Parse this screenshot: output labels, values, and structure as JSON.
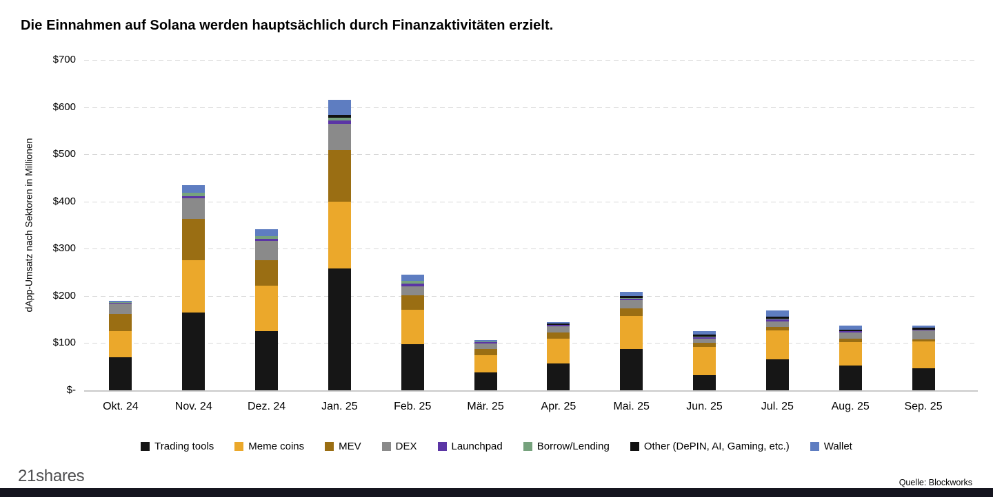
{
  "title": "Die Einnahmen auf Solana werden hauptsächlich durch Finanzaktivitäten erzielt.",
  "footer": {
    "logo": "21shares",
    "source": "Quelle: Blockworks"
  },
  "chart_data": {
    "type": "bar",
    "stacked": true,
    "title": "Die Einnahmen auf Solana werden hauptsächlich durch Finanzaktivitäten erzielt.",
    "ylabel": "dApp-Umsatz nach Sektoren in Millionen",
    "xlabel": "",
    "ylim": [
      0,
      700
    ],
    "grid": "dashed-horizontal",
    "legend_position": "bottom",
    "yticks": [
      {
        "label": "$700",
        "value": 700
      },
      {
        "label": "$600",
        "value": 600
      },
      {
        "label": "$500",
        "value": 500
      },
      {
        "label": "$400",
        "value": 400
      },
      {
        "label": "$300",
        "value": 300
      },
      {
        "label": "$200",
        "value": 200
      },
      {
        "label": "$100",
        "value": 100
      },
      {
        "label": "$-",
        "value": 0
      }
    ],
    "categories": [
      "Okt. 24",
      "Nov. 24",
      "Dez. 24",
      "Jan. 25",
      "Feb. 25",
      "Mär. 25",
      "Apr. 25",
      "Mai. 25",
      "Jun. 25",
      "Jul. 25",
      "Aug. 25",
      "Sep. 25"
    ],
    "series": [
      {
        "name": "Trading tools",
        "color": "#161616",
        "values": [
          70,
          165,
          126,
          258,
          98,
          38,
          57,
          87,
          32,
          65,
          52,
          47
        ]
      },
      {
        "name": "Meme coins",
        "color": "#EBA82B",
        "values": [
          55,
          110,
          96,
          142,
          72,
          37,
          53,
          71,
          60,
          62,
          50,
          56
        ]
      },
      {
        "name": "MEV",
        "color": "#9A6E13",
        "values": [
          37,
          88,
          53,
          109,
          32,
          12,
          12,
          15,
          9,
          7,
          8,
          5
        ]
      },
      {
        "name": "DEX",
        "color": "#8A8A8A",
        "values": [
          22,
          44,
          41,
          55,
          19,
          12,
          14,
          18,
          8,
          12,
          12,
          19
        ]
      },
      {
        "name": "Launchpad",
        "color": "#5B35A5",
        "values": [
          2,
          5,
          5,
          8,
          5,
          3,
          2,
          3,
          3,
          4,
          3,
          1
        ]
      },
      {
        "name": "Borrow/Lending",
        "color": "#76A27D",
        "values": [
          1,
          7,
          6,
          5,
          6,
          1,
          1,
          2,
          2,
          2,
          1,
          1
        ]
      },
      {
        "name": "Other (DePIN, AI, Gaming, etc.)",
        "color": "#111111",
        "values": [
          0,
          0,
          0,
          6,
          0,
          1,
          2,
          4,
          4,
          4,
          3,
          4
        ]
      },
      {
        "name": "Wallet",
        "color": "#5E7DC1",
        "values": [
          3,
          16,
          15,
          33,
          13,
          3,
          3,
          9,
          8,
          13,
          8,
          4
        ]
      }
    ]
  }
}
